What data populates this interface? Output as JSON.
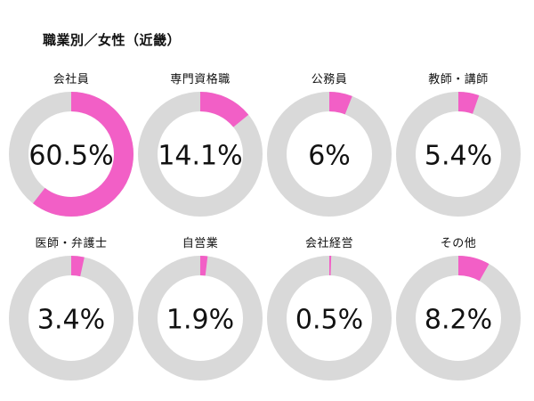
{
  "colors": {
    "accent": "#f25fc6",
    "track": "#d9d9d9",
    "text": "#111111",
    "background": "#ffffff"
  },
  "chart_data": {
    "type": "pie",
    "title": "職業別／女性（近畿）",
    "categories": [
      "会社員",
      "専門資格職",
      "公務員",
      "教師・講師",
      "医師・弁護士",
      "自営業",
      "会社経営",
      "その他"
    ],
    "values": [
      60.5,
      14.1,
      6,
      5.4,
      3.4,
      1.9,
      0.5,
      8.2
    ],
    "value_labels": [
      "60.5%",
      "14.1%",
      "6%",
      "5.4%",
      "3.4%",
      "1.9%",
      "0.5%",
      "8.2%"
    ]
  }
}
